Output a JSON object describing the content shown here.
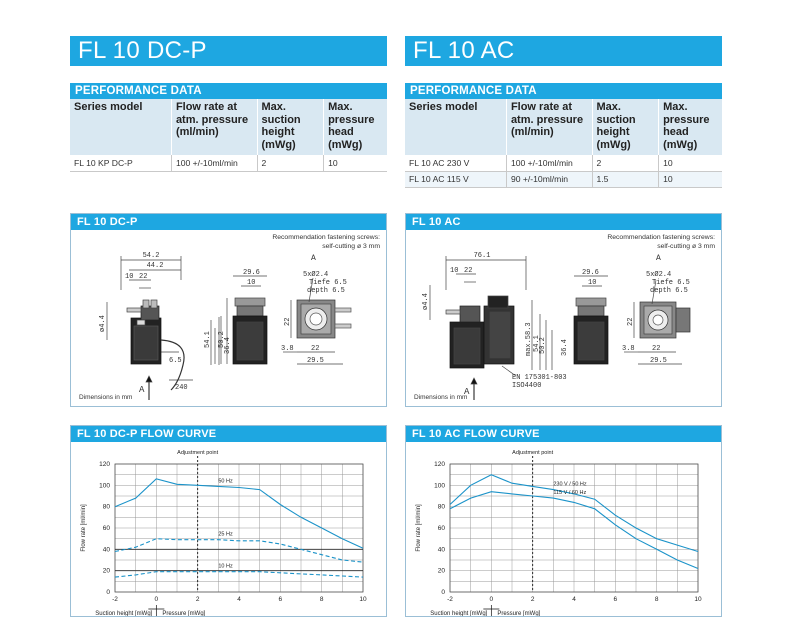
{
  "left": {
    "title": "FL 10 DC-P",
    "perf_title": "PERFORMANCE DATA",
    "headers": [
      [
        "Series model"
      ],
      [
        "Flow rate at",
        "atm. pressure",
        "(ml/min)"
      ],
      [
        "Max.",
        "suction",
        "height",
        "(mWg)"
      ],
      [
        "Max.",
        "pressure",
        "head",
        "(mWg)"
      ]
    ],
    "rows": [
      [
        "FL 10 KP DC-P",
        "100 +/-10ml/min",
        "2",
        "10"
      ]
    ],
    "drawing_title": "FL 10 DC-P",
    "recommendation": [
      "Recommendation fastening screws:",
      "self-cutting ø 3 mm"
    ],
    "dims_note": "Dimensions in mm",
    "drawing_labels": {
      "d542": "54.2",
      "d442": "44.2",
      "d10": "10",
      "d22": "22",
      "d44": "ø4.4",
      "d541": "54.1",
      "d502": "50.2",
      "d364": "36.4",
      "d65": "6.5",
      "d240": "240",
      "arrowA": "A",
      "d296": "29.6",
      "d10b": "10",
      "d5x": "5xØ2.4",
      "tiefe": "Tiefe 6.5",
      "depth": "depth 6.5",
      "d22v": "22",
      "d38": "3.8",
      "d22h": "22",
      "d295": "29.5",
      "viewA": "A"
    },
    "curve_title": "FL 10 DC-P FLOW CURVE",
    "adjustment": "Adjustment point",
    "y_label": "Flow rate [ml/min]",
    "x_label_left": "Suction height  [mWg]",
    "x_label_right": "Pressure [mWg]"
  },
  "right": {
    "title": "FL 10 AC",
    "perf_title": "PERFORMANCE DATA",
    "headers": [
      [
        "Series model"
      ],
      [
        "Flow rate at",
        "atm. pressure",
        "(ml/min)"
      ],
      [
        "Max.",
        "suction",
        "height",
        "(mWg)"
      ],
      [
        "Max.",
        "pressure",
        "head",
        "(mWg)"
      ]
    ],
    "rows": [
      [
        "FL 10 AC 230 V",
        "100 +/-10ml/min",
        "2",
        "10"
      ],
      [
        "FL 10 AC 115 V",
        "90 +/-10ml/min",
        "1.5",
        "10"
      ]
    ],
    "drawing_title": "FL 10 AC",
    "recommendation": [
      "Recommendation fastening screws:",
      "self-cutting ø 3 mm"
    ],
    "dims_note": "Dimensions in mm",
    "drawing_labels": {
      "d761": "76.1",
      "d10": "10",
      "d22": "22",
      "d44": "ø4.4",
      "max583": "max.58.3",
      "d541": "54.1",
      "d502": "50.2",
      "d364": "36.4",
      "en": "EN 175301-803",
      "iso": "ISO4400",
      "arrowA": "A",
      "d296": "29.6",
      "d10b": "10",
      "d5x": "5xØ2.4",
      "tiefe": "Tiefe 6.5",
      "depth": "depth 6.5",
      "d22v": "22",
      "d38": "3.8",
      "d22h": "22",
      "d295": "29.5",
      "viewA": "A"
    },
    "curve_title": "FL 10 AC FLOW CURVE",
    "adjustment": "Adjustment point",
    "y_label": "Flow rate [ml/min]",
    "x_label_left": "Suction height  [mWg]",
    "x_label_right": "Pressure [mWg]"
  },
  "chart_data": [
    {
      "type": "line",
      "title": "FL 10 DC-P FLOW CURVE",
      "xlabel": "Suction height  [mWg] / Pressure [mWg]",
      "ylabel": "Flow rate [ml/min]",
      "xlim": [
        -2,
        10
      ],
      "ylim": [
        0,
        120
      ],
      "x_ticks": [
        -2,
        0,
        2,
        4,
        6,
        8,
        10
      ],
      "y_ticks": [
        0,
        20,
        40,
        60,
        80,
        100,
        120
      ],
      "adjustment_x": 2,
      "series": [
        {
          "name": "50 Hz",
          "style": "solid",
          "x": [
            -2,
            -1,
            0,
            1,
            2,
            3,
            4,
            5,
            6,
            7,
            8,
            9,
            10
          ],
          "y": [
            80,
            88,
            106,
            101,
            100,
            99,
            98,
            96,
            82,
            70,
            60,
            50,
            41
          ]
        },
        {
          "name": "",
          "style": "solid",
          "x": [
            -2,
            0,
            2,
            4,
            6,
            8,
            10
          ],
          "y": [
            40,
            40,
            40,
            40,
            40,
            40,
            40
          ]
        },
        {
          "name": "25 Hz",
          "style": "dashed",
          "x": [
            -2,
            -1,
            0,
            1,
            2,
            3,
            4,
            5,
            6,
            7,
            8,
            9,
            10
          ],
          "y": [
            38,
            42,
            50,
            49,
            49,
            49,
            48,
            48,
            45,
            40,
            35,
            30,
            28
          ]
        },
        {
          "name": "",
          "style": "solid",
          "x": [
            -2,
            0,
            2,
            4,
            6,
            8,
            10
          ],
          "y": [
            20,
            20,
            20,
            20,
            20,
            20,
            20
          ]
        },
        {
          "name": "10 Hz",
          "style": "dashed",
          "x": [
            -2,
            -1,
            0,
            1,
            2,
            3,
            4,
            5,
            6,
            7,
            8,
            9,
            10
          ],
          "y": [
            14,
            16,
            19,
            19,
            19,
            19,
            19,
            19,
            18,
            17,
            16,
            15,
            14
          ]
        }
      ],
      "grid": true
    },
    {
      "type": "line",
      "title": "FL 10 AC FLOW CURVE",
      "xlabel": "Suction height  [mWg] / Pressure [mWg]",
      "ylabel": "Flow rate [ml/min]",
      "xlim": [
        -2,
        10
      ],
      "ylim": [
        0,
        120
      ],
      "x_ticks": [
        -2,
        0,
        2,
        4,
        6,
        8,
        10
      ],
      "y_ticks": [
        0,
        20,
        40,
        60,
        80,
        100,
        120
      ],
      "adjustment_x": 2,
      "series": [
        {
          "name": "230 V / 50 Hz",
          "style": "solid",
          "x": [
            -2,
            -1,
            0,
            1,
            2,
            3,
            4,
            5,
            6,
            7,
            8,
            9,
            10
          ],
          "y": [
            82,
            100,
            110,
            102,
            99,
            96,
            92,
            87,
            72,
            60,
            50,
            44,
            38
          ]
        },
        {
          "name": "115 V / 60 Hz",
          "style": "solid",
          "x": [
            -2,
            -1,
            0,
            1,
            2,
            3,
            4,
            5,
            6,
            7,
            8,
            9,
            10
          ],
          "y": [
            78,
            88,
            94,
            92,
            90,
            88,
            84,
            78,
            63,
            50,
            40,
            30,
            22
          ]
        }
      ],
      "grid": true
    }
  ]
}
